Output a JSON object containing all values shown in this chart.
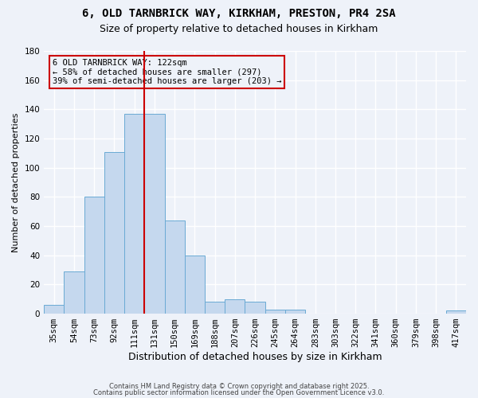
{
  "title": "6, OLD TARNBRICK WAY, KIRKHAM, PRESTON, PR4 2SA",
  "subtitle": "Size of property relative to detached houses in Kirkham",
  "xlabel": "Distribution of detached houses by size in Kirkham",
  "ylabel": "Number of detached properties",
  "bar_labels": [
    "35sqm",
    "54sqm",
    "73sqm",
    "92sqm",
    "111sqm",
    "131sqm",
    "150sqm",
    "169sqm",
    "188sqm",
    "207sqm",
    "226sqm",
    "245sqm",
    "264sqm",
    "283sqm",
    "303sqm",
    "322sqm",
    "341sqm",
    "360sqm",
    "379sqm",
    "398sqm",
    "417sqm"
  ],
  "bar_values": [
    6,
    29,
    80,
    111,
    137,
    137,
    64,
    40,
    8,
    10,
    8,
    3,
    3,
    0,
    0,
    0,
    0,
    0,
    0,
    0,
    2
  ],
  "bar_color": "#c5d8ee",
  "bar_edgecolor": "#6aaad4",
  "vline_color": "#cc0000",
  "annotation_line1": "6 OLD TARNBRICK WAY: 122sqm",
  "annotation_line2": "← 58% of detached houses are smaller (297)",
  "annotation_line3": "39% of semi-detached houses are larger (203) →",
  "ylim": [
    0,
    180
  ],
  "yticks": [
    0,
    20,
    40,
    60,
    80,
    100,
    120,
    140,
    160,
    180
  ],
  "footer1": "Contains HM Land Registry data © Crown copyright and database right 2025.",
  "footer2": "Contains public sector information licensed under the Open Government Licence v3.0.",
  "bg_color": "#eef2f9",
  "grid_color": "#ffffff",
  "title_fontsize": 10,
  "subtitle_fontsize": 9,
  "ylabel_fontsize": 8,
  "xlabel_fontsize": 9,
  "tick_fontsize": 7.5,
  "annot_fontsize": 7.5,
  "footer_fontsize": 6
}
